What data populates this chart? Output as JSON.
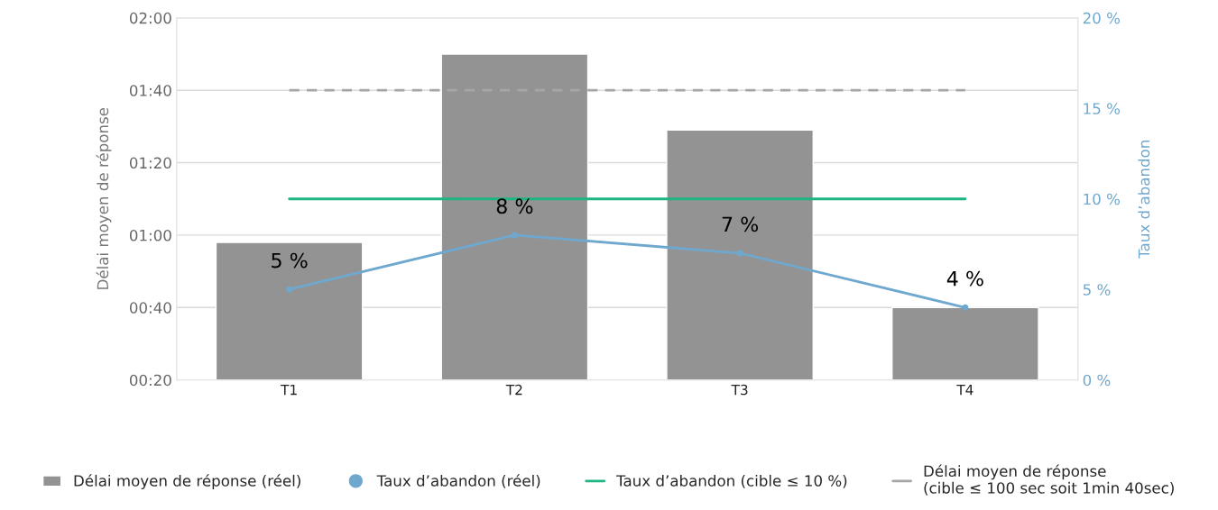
{
  "chart_data": {
    "type": "bar",
    "categories": [
      "T1",
      "T2",
      "T3",
      "T4"
    ],
    "ylabel": "Délai moyen de réponse",
    "y2label": "Taux d’abandon",
    "ylim": [
      20,
      120
    ],
    "yticks": [
      {
        "value": 20,
        "label": "00:20"
      },
      {
        "value": 40,
        "label": "00:40"
      },
      {
        "value": 60,
        "label": "01:00"
      },
      {
        "value": 80,
        "label": "01:20"
      },
      {
        "value": 100,
        "label": "01:40"
      },
      {
        "value": 120,
        "label": "02:00"
      }
    ],
    "y2lim": [
      0,
      20
    ],
    "y2ticks": [
      {
        "value": 0,
        "label": "0 %"
      },
      {
        "value": 5,
        "label": "5 %"
      },
      {
        "value": 10,
        "label": "10 %"
      },
      {
        "value": 15,
        "label": "15 %"
      },
      {
        "value": 20,
        "label": "20 %"
      }
    ],
    "grid": "y",
    "legend": "bottom",
    "series": [
      {
        "name": "Délai moyen de réponse (réel)",
        "color": "#939393",
        "values": [
          58,
          110,
          89,
          40
        ]
      },
      {
        "type": "line",
        "axis": "y2",
        "name": "Taux d’abandon (réel)",
        "color": "#6fa8cf",
        "marker": "circle",
        "values": [
          5,
          8,
          7,
          4
        ],
        "value_labels": [
          "5 %",
          "8 %",
          "7 %",
          "4 %"
        ]
      },
      {
        "type": "line",
        "axis": "y2",
        "name": "Taux d’abandon (cible ≤ 10 %)",
        "color": "#1db584",
        "values": [
          10,
          10,
          10,
          10
        ]
      },
      {
        "type": "line",
        "name": "Délai moyen de réponse\n(cible ≤ 100 sec soit 1min 40sec)",
        "color": "#a6a6a6",
        "line_style": "dashed",
        "values": [
          100,
          100,
          100,
          100
        ]
      }
    ]
  }
}
